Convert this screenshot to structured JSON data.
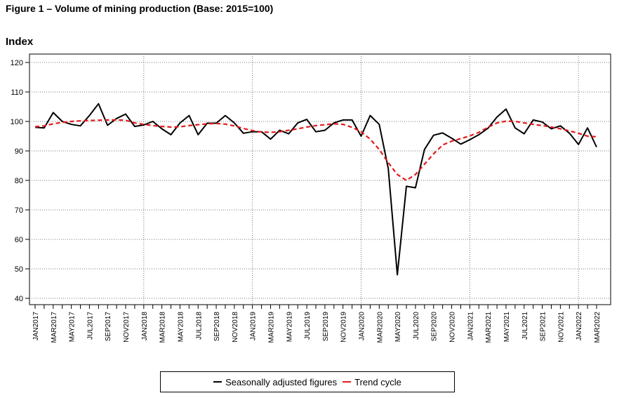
{
  "figure_title": "Figure 1 – Volume of mining production (Base: 2015=100)",
  "chart_data": {
    "type": "line",
    "ylabel": "Index",
    "ylim": [
      40,
      120
    ],
    "yticks": [
      40,
      50,
      60,
      70,
      80,
      90,
      100,
      110,
      120
    ],
    "grid": true,
    "legend_position": "bottom",
    "x_labels": [
      "JAN2017",
      "MAR2017",
      "MAY2017",
      "JUL2017",
      "SEP2017",
      "NOV2017",
      "JAN2018",
      "MAR2018",
      "MAY2018",
      "JUL2018",
      "SEP2018",
      "NOV2018",
      "JAN2019",
      "MAR2019",
      "MAY2019",
      "JUL2019",
      "SEP2019",
      "NOV2019",
      "JAN2020",
      "MAR2020",
      "MAY2020",
      "JUL2020",
      "SEP2020",
      "NOV2020",
      "JAN2021",
      "MAR2021",
      "MAY2021",
      "JUL2021",
      "SEP2021",
      "NOV2021",
      "JAN2022",
      "MAR2022"
    ],
    "x": [
      "JAN2017",
      "FEB2017",
      "MAR2017",
      "APR2017",
      "MAY2017",
      "JUN2017",
      "JUL2017",
      "AUG2017",
      "SEP2017",
      "OCT2017",
      "NOV2017",
      "DEC2017",
      "JAN2018",
      "FEB2018",
      "MAR2018",
      "APR2018",
      "MAY2018",
      "JUN2018",
      "JUL2018",
      "AUG2018",
      "SEP2018",
      "OCT2018",
      "NOV2018",
      "DEC2018",
      "JAN2019",
      "FEB2019",
      "MAR2019",
      "APR2019",
      "MAY2019",
      "JUN2019",
      "JUL2019",
      "AUG2019",
      "SEP2019",
      "OCT2019",
      "NOV2019",
      "DEC2019",
      "JAN2020",
      "FEB2020",
      "MAR2020",
      "APR2020",
      "MAY2020",
      "JUN2020",
      "JUL2020",
      "AUG2020",
      "SEP2020",
      "OCT2020",
      "NOV2020",
      "DEC2020",
      "JAN2021",
      "FEB2021",
      "MAR2021",
      "APR2021",
      "MAY2021",
      "JUN2021",
      "JUL2021",
      "AUG2021",
      "SEP2021",
      "OCT2021",
      "NOV2021",
      "DEC2021",
      "JAN2022",
      "FEB2022",
      "MAR2022"
    ],
    "series": [
      {
        "name": "Seasonally adjusted figures",
        "color": "#000000",
        "style": "solid",
        "values": [
          98,
          97.8,
          103,
          100,
          99,
          98.5,
          102,
          106,
          98.7,
          101,
          102.5,
          98.3,
          98.8,
          100,
          97.5,
          95.5,
          99.5,
          102,
          95.5,
          99.4,
          99.4,
          102,
          99.5,
          96,
          96.5,
          96.5,
          94,
          97,
          95.8,
          99.5,
          100.7,
          96.5,
          97,
          99.5,
          100.5,
          100.5,
          95,
          102,
          99,
          84,
          48,
          78,
          77.5,
          90.5,
          95.3,
          96.1,
          94.3,
          92.3,
          93.8,
          95.5,
          97.7,
          101.5,
          104.2,
          97.8,
          95.8,
          100.5,
          99.8,
          97.5,
          98.5,
          96,
          92.2,
          97.8,
          91.3
        ]
      },
      {
        "name": "Trend cycle",
        "color": "#e41a1c",
        "style": "dashed",
        "values": [
          98.2,
          98.5,
          99.2,
          99.7,
          100,
          100.2,
          100.3,
          100.4,
          100.5,
          100.5,
          100.4,
          99.5,
          99,
          98.6,
          98.3,
          98.1,
          98.2,
          98.6,
          98.9,
          99.2,
          99.3,
          99.1,
          98.5,
          97.6,
          96.9,
          96.4,
          96.3,
          96.5,
          97,
          97.5,
          98.1,
          98.6,
          98.9,
          99.2,
          99,
          98,
          96.5,
          94,
          90.5,
          86,
          82,
          80,
          82,
          85.5,
          89,
          92,
          93.3,
          94.2,
          95.1,
          96.3,
          98,
          99.5,
          100.1,
          100,
          99.5,
          99,
          98.6,
          98.1,
          97.5,
          96.8,
          96,
          95,
          94.8
        ]
      }
    ]
  }
}
